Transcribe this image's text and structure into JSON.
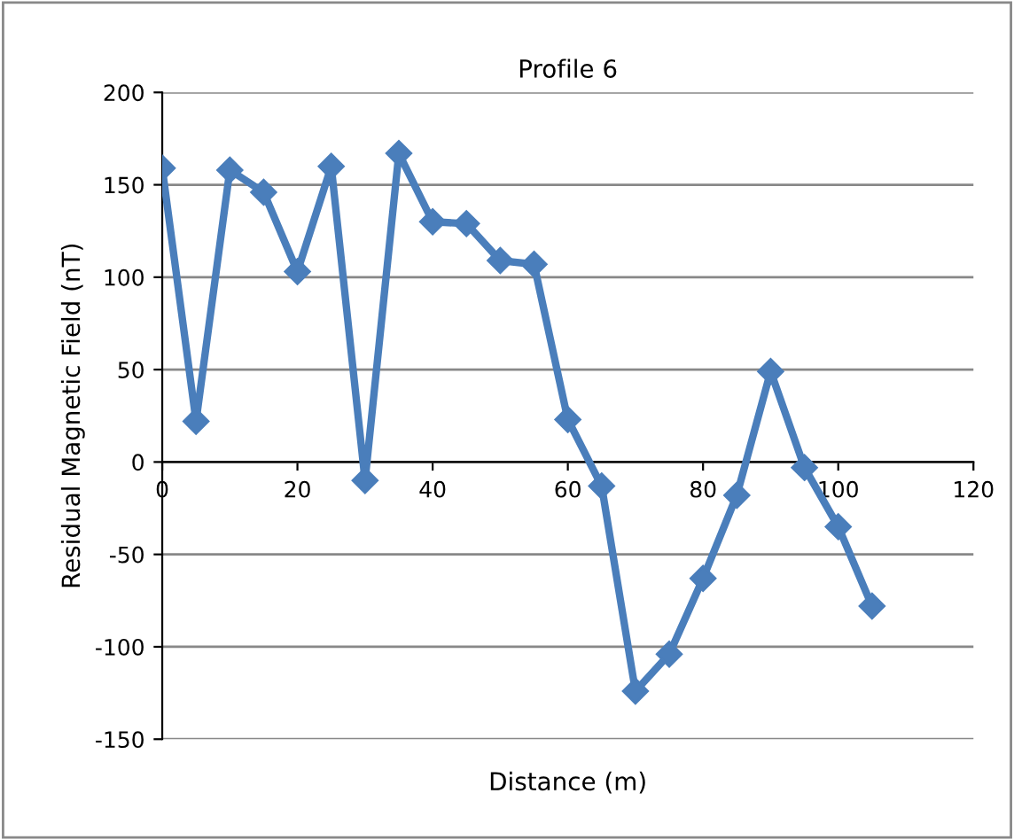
{
  "chart_data": {
    "type": "line",
    "title": "Profile 6",
    "xlabel": "Distance (m)",
    "ylabel": "Residual Magnetic Field (nT)",
    "x": [
      0,
      5,
      10,
      15,
      20,
      25,
      30,
      35,
      40,
      45,
      50,
      55,
      60,
      65,
      70,
      75,
      80,
      85,
      90,
      95,
      100,
      105
    ],
    "series": [
      {
        "color": "#4a7ebb",
        "values": [
          159,
          22,
          158,
          146,
          103,
          160,
          -10,
          167,
          130,
          129,
          109,
          107,
          23,
          -13,
          -124,
          -104,
          -63,
          -18,
          49,
          -3,
          -35,
          -78
        ]
      }
    ],
    "xlim": [
      0,
      120
    ],
    "xticks": [
      0,
      20,
      40,
      60,
      80,
      100,
      120
    ],
    "ylim": [
      -150,
      200
    ],
    "yticks": [
      -150,
      -100,
      -50,
      0,
      50,
      100,
      150,
      200
    ],
    "grid": "y",
    "marker": "diamond",
    "line_style": "solid",
    "legend": false
  }
}
